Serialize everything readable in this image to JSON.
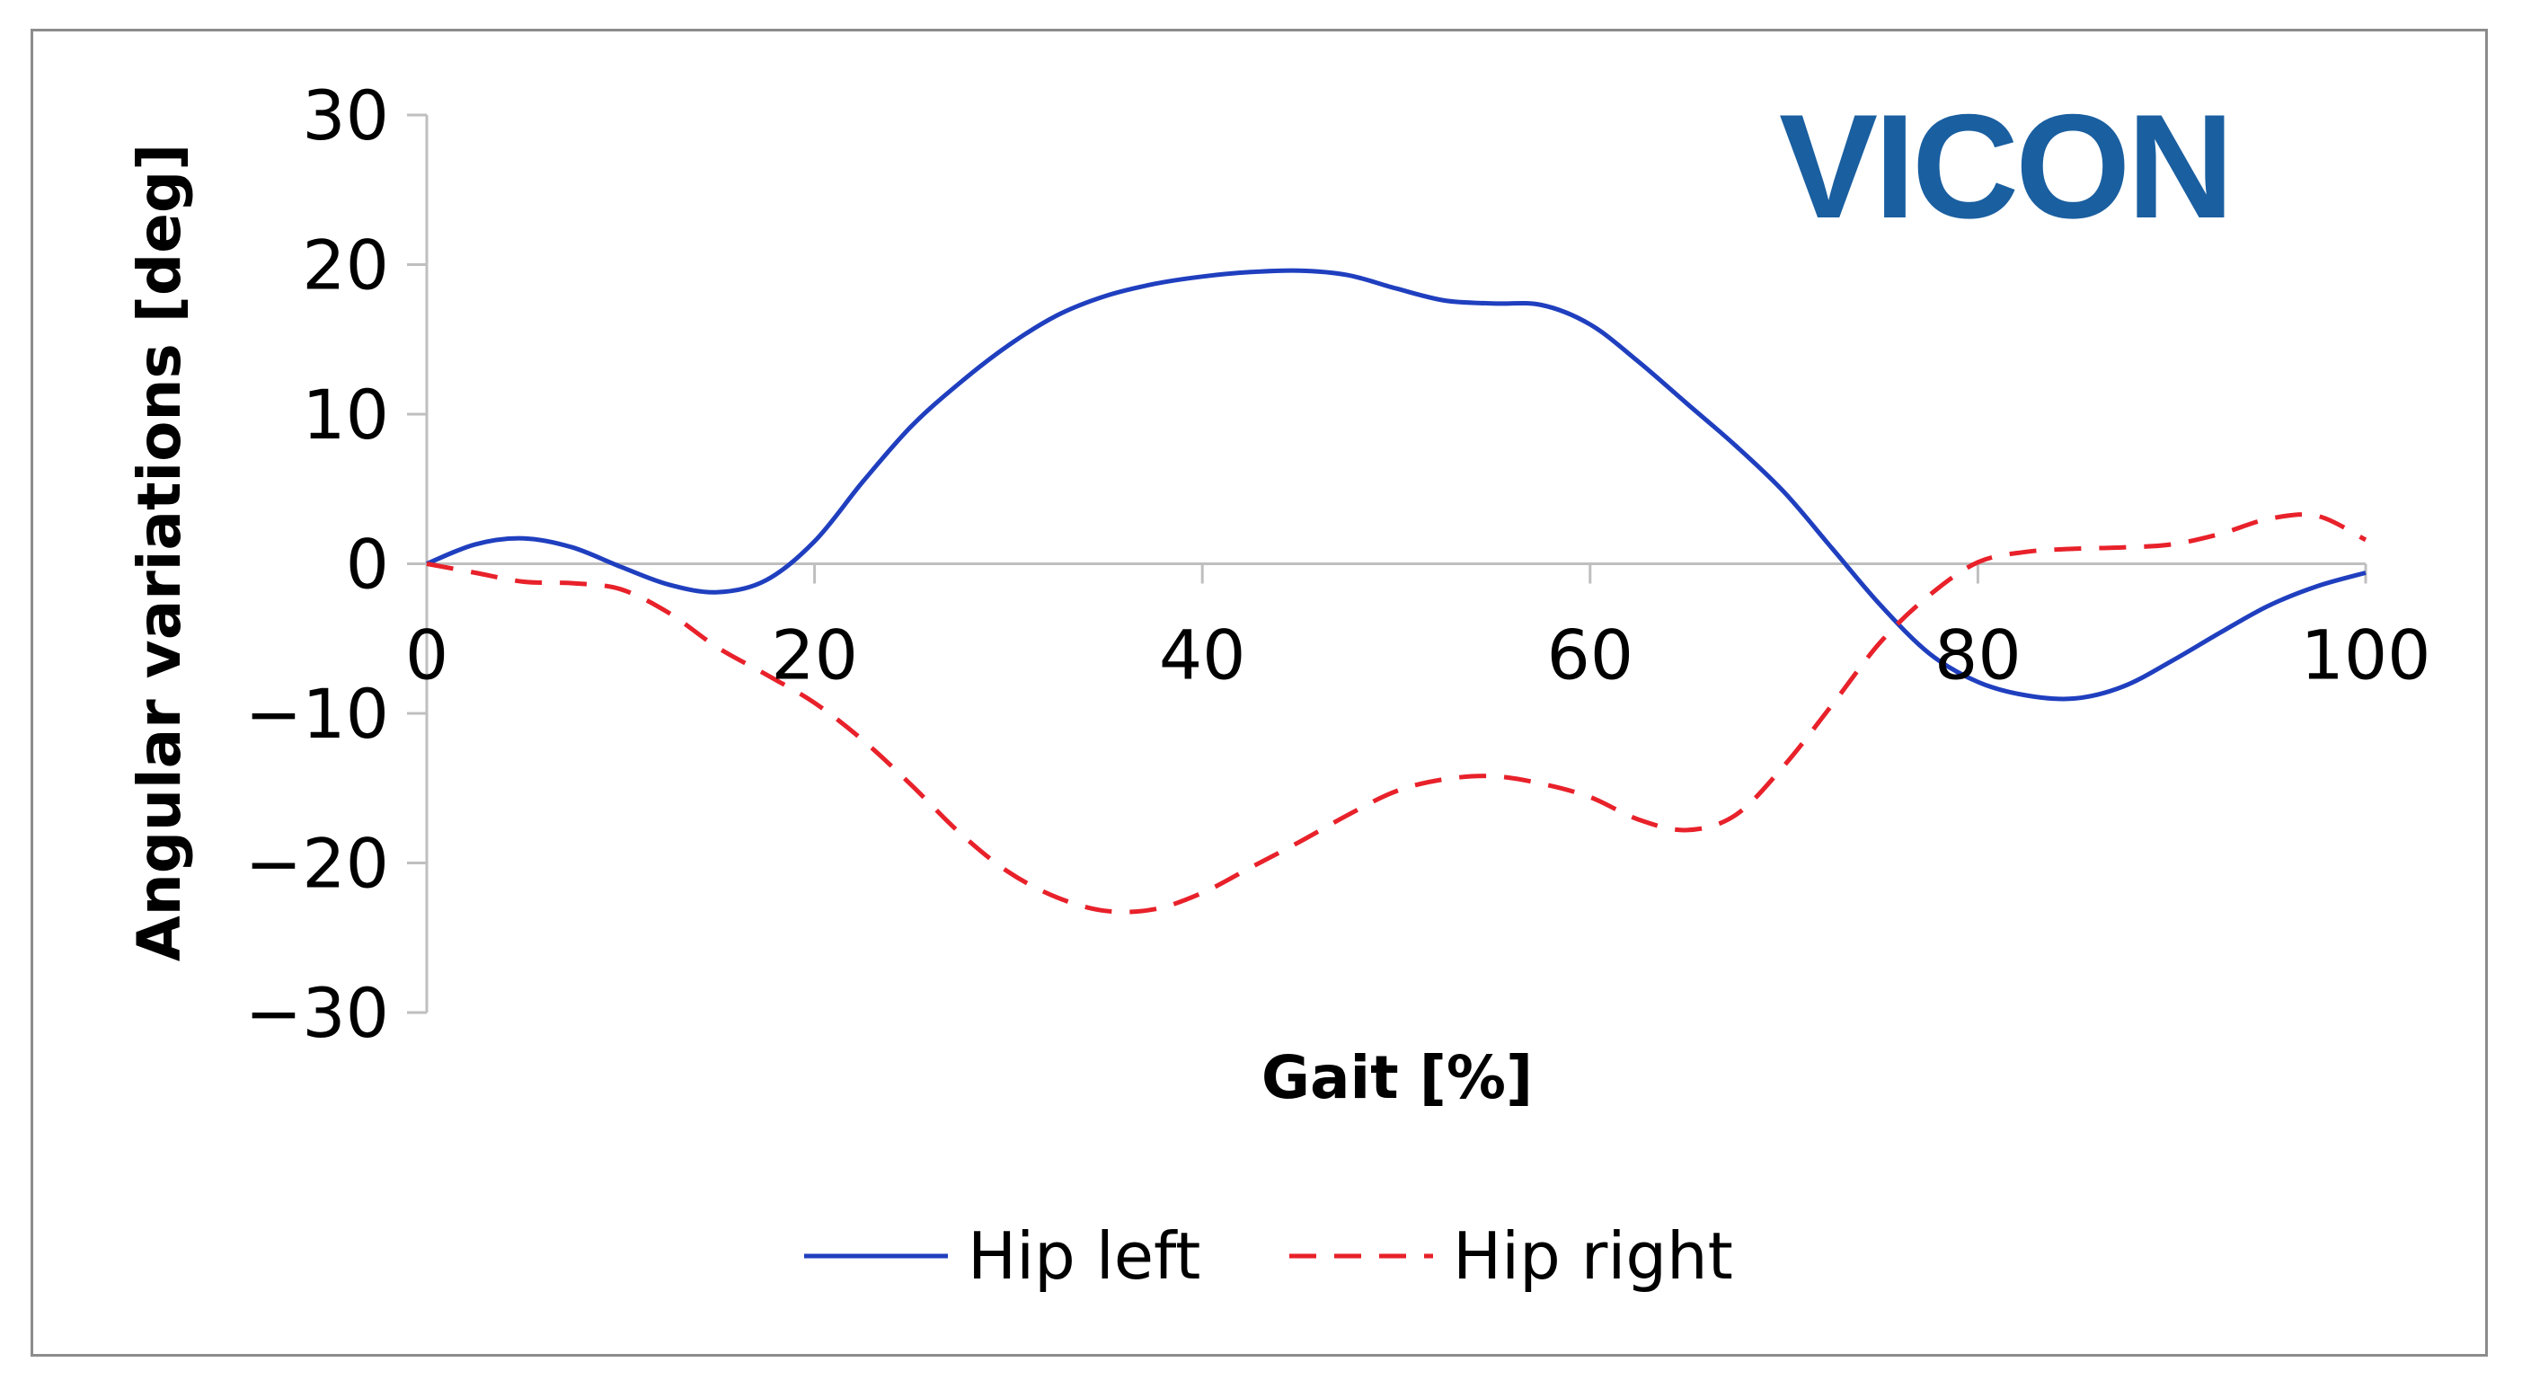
{
  "chart_data": {
    "type": "line",
    "xlabel": "Gait [%]",
    "ylabel": "Angular variations [deg]",
    "xlim": [
      0,
      100
    ],
    "ylim": [
      -30,
      30
    ],
    "x_ticks": [
      0,
      20,
      40,
      60,
      80,
      100
    ],
    "x_tick_labels": [
      "0",
      "20",
      "40",
      "60",
      "80",
      "100"
    ],
    "y_ticks": [
      30,
      20,
      10,
      0,
      -10,
      -20,
      -30
    ],
    "y_tick_labels": [
      "30",
      "20",
      "10",
      "0",
      "−10",
      "−20",
      "−30"
    ],
    "grid": false,
    "legend_position": "bottom",
    "series": [
      {
        "name": "Hip left",
        "color": "#1f3fbf",
        "dash": "solid",
        "x": [
          0,
          2.5,
          5,
          7.5,
          10,
          12.5,
          15,
          17.5,
          20,
          22.5,
          25,
          27.5,
          30,
          32.5,
          35,
          37.5,
          40,
          42.5,
          45,
          47.5,
          50,
          52.5,
          55,
          57.5,
          60,
          62.5,
          65,
          67.5,
          70,
          72.5,
          75,
          77.5,
          80,
          82.5,
          85,
          87.5,
          90,
          92.5,
          95,
          97.5,
          100
        ],
        "y": [
          0,
          1.3,
          1.7,
          1.1,
          -0.2,
          -1.4,
          -1.9,
          -1.1,
          1.5,
          5.5,
          9.2,
          12.1,
          14.6,
          16.6,
          17.9,
          18.7,
          19.2,
          19.5,
          19.6,
          19.3,
          18.4,
          17.6,
          17.4,
          17.3,
          16.0,
          13.5,
          10.7,
          7.9,
          4.8,
          1.0,
          -2.8,
          -6.0,
          -7.9,
          -8.8,
          -9.0,
          -8.2,
          -6.5,
          -4.6,
          -2.8,
          -1.5,
          -0.6
        ]
      },
      {
        "name": "Hip right",
        "color": "#e8212a",
        "dash": "dashed",
        "x": [
          0,
          2.5,
          5,
          7.5,
          10,
          12.5,
          15,
          17.5,
          20,
          22.5,
          25,
          27.5,
          30,
          32.5,
          35,
          37.5,
          40,
          42.5,
          45,
          47.5,
          50,
          52.5,
          55,
          57.5,
          60,
          62.5,
          65,
          67.5,
          70,
          72.5,
          75,
          77.5,
          80,
          82.5,
          85,
          87.5,
          90,
          92.5,
          95,
          97.5,
          100
        ],
        "y": [
          0,
          -0.6,
          -1.2,
          -1.3,
          -1.7,
          -3.3,
          -5.6,
          -7.4,
          -9.3,
          -11.8,
          -14.8,
          -18.0,
          -20.6,
          -22.3,
          -23.2,
          -23.1,
          -22.0,
          -20.3,
          -18.6,
          -16.8,
          -15.2,
          -14.4,
          -14.2,
          -14.7,
          -15.6,
          -17.1,
          -17.8,
          -16.8,
          -13.5,
          -9.4,
          -5.2,
          -2.1,
          0.1,
          0.8,
          1.0,
          1.1,
          1.3,
          2.0,
          3.0,
          3.2,
          1.6
        ]
      }
    ]
  },
  "logo": {
    "text": "VICON",
    "color": "#1a5fa0"
  }
}
